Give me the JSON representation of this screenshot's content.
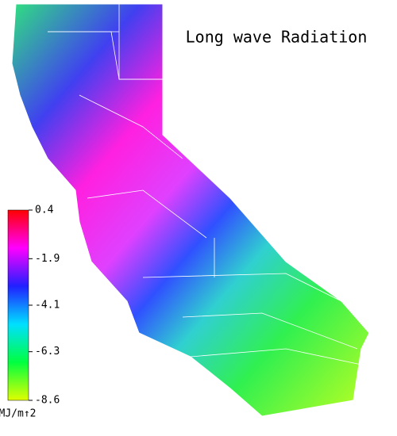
{
  "map": {
    "title": "Long wave Radiation",
    "colorbar": {
      "lim": [
        0.4,
        -8.6
      ],
      "ticks": [
        0.4,
        -1.9,
        -4.1,
        -6.3,
        -8.6
      ],
      "unit": "MJ/m↑2",
      "colors": [
        "#ff0000",
        "#ff00ff",
        "#2020ff",
        "#00e0ff",
        "#00ff40",
        "#e0ff00"
      ]
    }
  }
}
